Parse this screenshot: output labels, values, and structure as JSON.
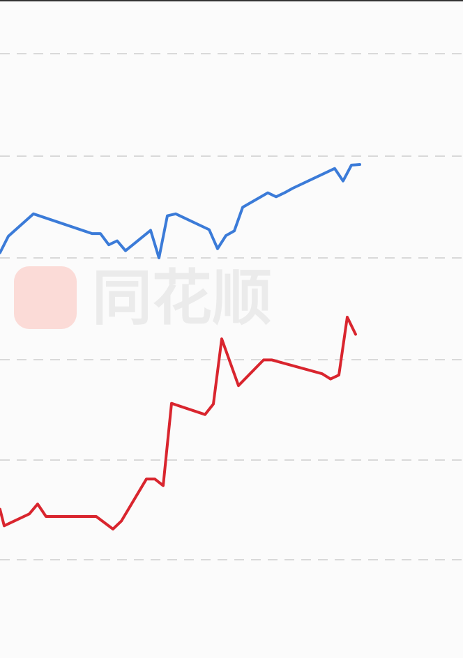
{
  "watermark": {
    "text": "同花顺",
    "logo_color": "#ff3b1f"
  },
  "chart_data": {
    "type": "line",
    "title": "",
    "xlabel": "",
    "ylabel": "",
    "grid": true,
    "grid_style": "dashed",
    "gridline_count": 6,
    "legend": "none",
    "y_axis_labels_visible": false,
    "x_axis_labels_visible": false,
    "x_range": [
      0,
      44
    ],
    "y_range": [
      0,
      100
    ],
    "series": [
      {
        "color": "#3b7bd8",
        "x": [
          0,
          1,
          4,
          11,
          12,
          13,
          14,
          15,
          18,
          19,
          20,
          21,
          25,
          26,
          27,
          28,
          29,
          32,
          33,
          34,
          35,
          40,
          41,
          42,
          43
        ],
        "y": [
          61.6,
          64.1,
          67.5,
          64.5,
          64.5,
          62.8,
          63.4,
          61.9,
          65.0,
          60.8,
          67.2,
          67.5,
          65.1,
          62.2,
          64.2,
          64.9,
          68.5,
          70.7,
          70.1,
          70.7,
          71.4,
          74.4,
          72.5,
          74.9,
          75.0
        ]
      },
      {
        "color": "#d9252e",
        "x": [
          0,
          0.5,
          3.5,
          4.5,
          5.5,
          11.5,
          13.5,
          14.5,
          17.5,
          18.5,
          19.5,
          20.5,
          24.5,
          25.5,
          26.5,
          28.5,
          31.5,
          32.5,
          38.5,
          39.5,
          40.5,
          41.5,
          42.5
        ],
        "y": [
          22.6,
          20.1,
          21.9,
          23.4,
          21.5,
          21.5,
          19.6,
          20.8,
          27.2,
          27.2,
          26.2,
          38.7,
          37.0,
          38.6,
          48.5,
          41.4,
          45.3,
          45.3,
          43.2,
          42.4,
          43.0,
          51.8,
          49.2
        ]
      }
    ]
  }
}
